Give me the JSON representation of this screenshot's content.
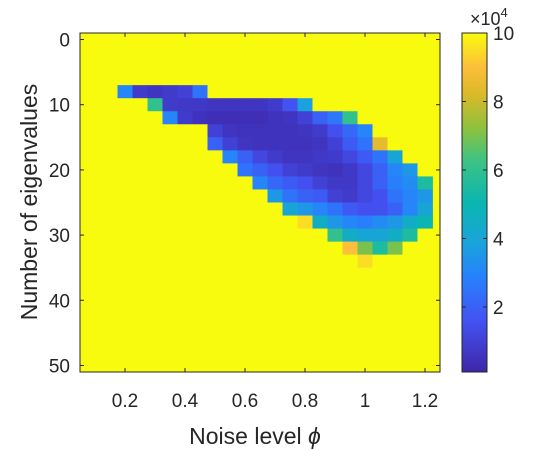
{
  "chart_data": {
    "type": "heatmap",
    "xlabel": "Noise level",
    "xlabel_symbol": "ϕ",
    "ylabel": "Number of eigenvalues",
    "x_ticks": [
      "0.2",
      "0.4",
      "0.6",
      "0.8",
      "1",
      "1.2"
    ],
    "y_ticks": [
      "0",
      "10",
      "20",
      "30",
      "40",
      "50"
    ],
    "xlim": [
      0.05,
      1.25
    ],
    "ylim": [
      -1,
      51
    ],
    "y_reversed": true,
    "cell_x": [
      0.2,
      0.25,
      0.3,
      0.35,
      0.4,
      0.45,
      0.5,
      0.55,
      0.6,
      0.65,
      0.7,
      0.75,
      0.8,
      0.85,
      0.9,
      0.95,
      1.0,
      1.05,
      1.1,
      1.15,
      1.2
    ],
    "cell_y": [
      8,
      10,
      12,
      14,
      16,
      18,
      20,
      22,
      24,
      26,
      28,
      30,
      32,
      34,
      36,
      38,
      40,
      42,
      44,
      46
    ],
    "values": [
      [
        3.0,
        0.8,
        0.6,
        0.8,
        1.0,
        2.5,
        10,
        10,
        10,
        10,
        10,
        10,
        10,
        10,
        10,
        10,
        10,
        10,
        10,
        10,
        10
      ],
      [
        10,
        10,
        6.0,
        0.8,
        0.7,
        0.7,
        0.6,
        0.6,
        0.6,
        0.6,
        0.8,
        1.6,
        3.8,
        10,
        10,
        10,
        10,
        10,
        10,
        10,
        10
      ],
      [
        10,
        10,
        10,
        3.0,
        0.8,
        0.5,
        0.4,
        0.4,
        0.4,
        0.4,
        0.5,
        0.6,
        1.0,
        2.0,
        2.6,
        6.0,
        10,
        10,
        10,
        10,
        10
      ],
      [
        10,
        10,
        10,
        10,
        10,
        10,
        1.0,
        0.6,
        0.5,
        0.5,
        0.5,
        0.5,
        0.6,
        0.8,
        1.5,
        2.2,
        3.0,
        10,
        10,
        10,
        10
      ],
      [
        10,
        10,
        10,
        10,
        10,
        10,
        2.0,
        1.0,
        0.6,
        0.5,
        0.5,
        0.5,
        0.5,
        0.6,
        1.0,
        1.8,
        2.5,
        8.5,
        10,
        10,
        10
      ],
      [
        10,
        10,
        10,
        10,
        10,
        10,
        10,
        3.0,
        2.0,
        1.2,
        0.8,
        0.6,
        0.6,
        0.7,
        0.8,
        1.2,
        1.8,
        2.5,
        4.0,
        10,
        10
      ],
      [
        10,
        10,
        10,
        10,
        10,
        10,
        10,
        10,
        2.5,
        2.0,
        1.5,
        1.0,
        0.8,
        0.6,
        0.5,
        0.7,
        1.2,
        2.0,
        3.0,
        3.5,
        10
      ],
      [
        10,
        10,
        10,
        10,
        10,
        10,
        10,
        10,
        10,
        3.0,
        2.2,
        1.8,
        1.5,
        1.0,
        0.7,
        0.7,
        1.2,
        2.0,
        2.8,
        3.2,
        5.5
      ],
      [
        10,
        10,
        10,
        10,
        10,
        10,
        10,
        10,
        10,
        10,
        3.5,
        2.5,
        2.0,
        1.8,
        1.0,
        0.8,
        1.2,
        1.5,
        2.5,
        3.0,
        3.5
      ],
      [
        10,
        10,
        10,
        10,
        10,
        10,
        10,
        10,
        10,
        10,
        10,
        4.0,
        3.5,
        3.0,
        2.5,
        1.8,
        1.5,
        1.5,
        2.0,
        3.0,
        4.0
      ],
      [
        10,
        10,
        10,
        10,
        10,
        10,
        10,
        10,
        10,
        10,
        10,
        10,
        9.5,
        4.5,
        3.5,
        3.0,
        2.8,
        3.2,
        3.5,
        4.5,
        5.0
      ],
      [
        10,
        10,
        10,
        10,
        10,
        10,
        10,
        10,
        10,
        10,
        10,
        10,
        10,
        10,
        6.0,
        4.5,
        4.0,
        4.0,
        4.5,
        5.5,
        10
      ],
      [
        10,
        10,
        10,
        10,
        10,
        10,
        10,
        10,
        10,
        10,
        10,
        10,
        10,
        10,
        10,
        9.0,
        7.0,
        5.5,
        7.0,
        10,
        10
      ],
      [
        10,
        10,
        10,
        10,
        10,
        10,
        10,
        10,
        10,
        10,
        10,
        10,
        10,
        10,
        10,
        10,
        9.5,
        10,
        10,
        10,
        10
      ],
      [
        10,
        10,
        10,
        10,
        10,
        10,
        10,
        10,
        10,
        10,
        10,
        10,
        10,
        10,
        10,
        10,
        10,
        10,
        10,
        10,
        10
      ],
      [
        10,
        10,
        10,
        10,
        10,
        10,
        10,
        10,
        10,
        10,
        10,
        10,
        10,
        10,
        10,
        10,
        10,
        10,
        10,
        10,
        10
      ],
      [
        10,
        10,
        10,
        10,
        10,
        10,
        10,
        10,
        10,
        10,
        10,
        10,
        10,
        10,
        10,
        10,
        10,
        10,
        10,
        10,
        10
      ],
      [
        10,
        10,
        10,
        10,
        10,
        10,
        10,
        10,
        10,
        10,
        10,
        10,
        10,
        10,
        10,
        10,
        10,
        10,
        10,
        10,
        10
      ],
      [
        10,
        10,
        10,
        10,
        10,
        10,
        10,
        10,
        10,
        10,
        10,
        10,
        10,
        10,
        10,
        10,
        10,
        10,
        10,
        10,
        10
      ],
      [
        10,
        10,
        10,
        10,
        10,
        10,
        10,
        10,
        10,
        10,
        10,
        10,
        10,
        10,
        10,
        10,
        10,
        10,
        10,
        10,
        10
      ]
    ],
    "colorbar": {
      "colormap": "parula",
      "range": [
        0.1,
        10
      ],
      "ticks": [
        "2",
        "4",
        "6",
        "8",
        "10"
      ],
      "exponent_base": "×10",
      "exponent_power": "4"
    },
    "background_color": "#f9fb0e"
  }
}
